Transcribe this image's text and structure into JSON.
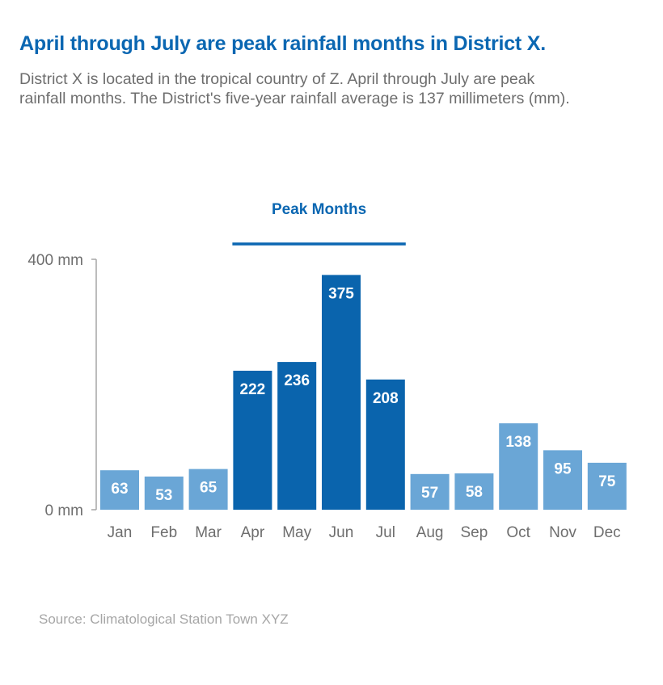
{
  "header": {
    "title": "April through July are peak rainfall months in District X.",
    "subtitle": "District X is located in the tropical country of Z. April through July are peak rainfall months. The District's five-year rainfall average is 137 millimeters (mm)."
  },
  "footer": {
    "source": "Source: Climatological  Station Town XYZ"
  },
  "colors": {
    "title": "#0b67b2",
    "peak": "#0a64ad",
    "normal": "#6aa6d6",
    "axis": "#a6a6a6",
    "text": "#6e6e6e"
  },
  "chart_data": {
    "type": "bar",
    "title": "",
    "xlabel": "",
    "ylabel": "",
    "categories": [
      "Jan",
      "Feb",
      "Mar",
      "Apr",
      "May",
      "Jun",
      "Jul",
      "Aug",
      "Sep",
      "Oct",
      "Nov",
      "Dec"
    ],
    "values": [
      63,
      53,
      65,
      222,
      236,
      375,
      208,
      57,
      58,
      138,
      95,
      75
    ],
    "data_labels": [
      "63",
      "53",
      "65",
      "222",
      "236",
      "375",
      "208",
      "57",
      "58",
      "138",
      "95",
      "75"
    ],
    "highlighted": [
      false,
      false,
      false,
      true,
      true,
      true,
      true,
      false,
      false,
      false,
      false,
      false
    ],
    "ylim": [
      0,
      400
    ],
    "y_ticks": [
      {
        "value": 0,
        "label": "0 mm"
      },
      {
        "value": 400,
        "label": "400 mm"
      }
    ],
    "grid": false,
    "annotation": {
      "label": "Peak Months",
      "from_category": "Apr",
      "to_category": "Jul"
    }
  }
}
